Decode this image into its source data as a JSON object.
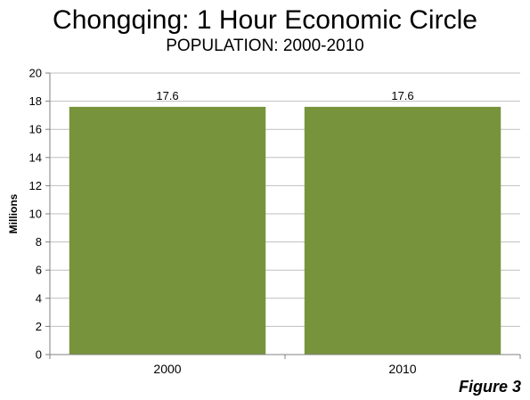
{
  "figure": {
    "label": "Figure 3"
  },
  "chart_data": {
    "type": "bar",
    "title": "Chongqing: 1 Hour Economic Circle",
    "subtitle": "POPULATION: 2000-2010",
    "categories": [
      "2000",
      "2010"
    ],
    "values": [
      17.6,
      17.6
    ],
    "data_labels": [
      "17.6",
      "17.6"
    ],
    "xlabel": "",
    "ylabel": "Millions",
    "ylim": [
      0,
      20
    ],
    "yticks": [
      0,
      2,
      4,
      6,
      8,
      10,
      12,
      14,
      16,
      18,
      20
    ],
    "grid": true,
    "legend": "none",
    "bar_color": "#77933C",
    "grid_color": "#BFBFBF",
    "axis_color": "#808080"
  }
}
